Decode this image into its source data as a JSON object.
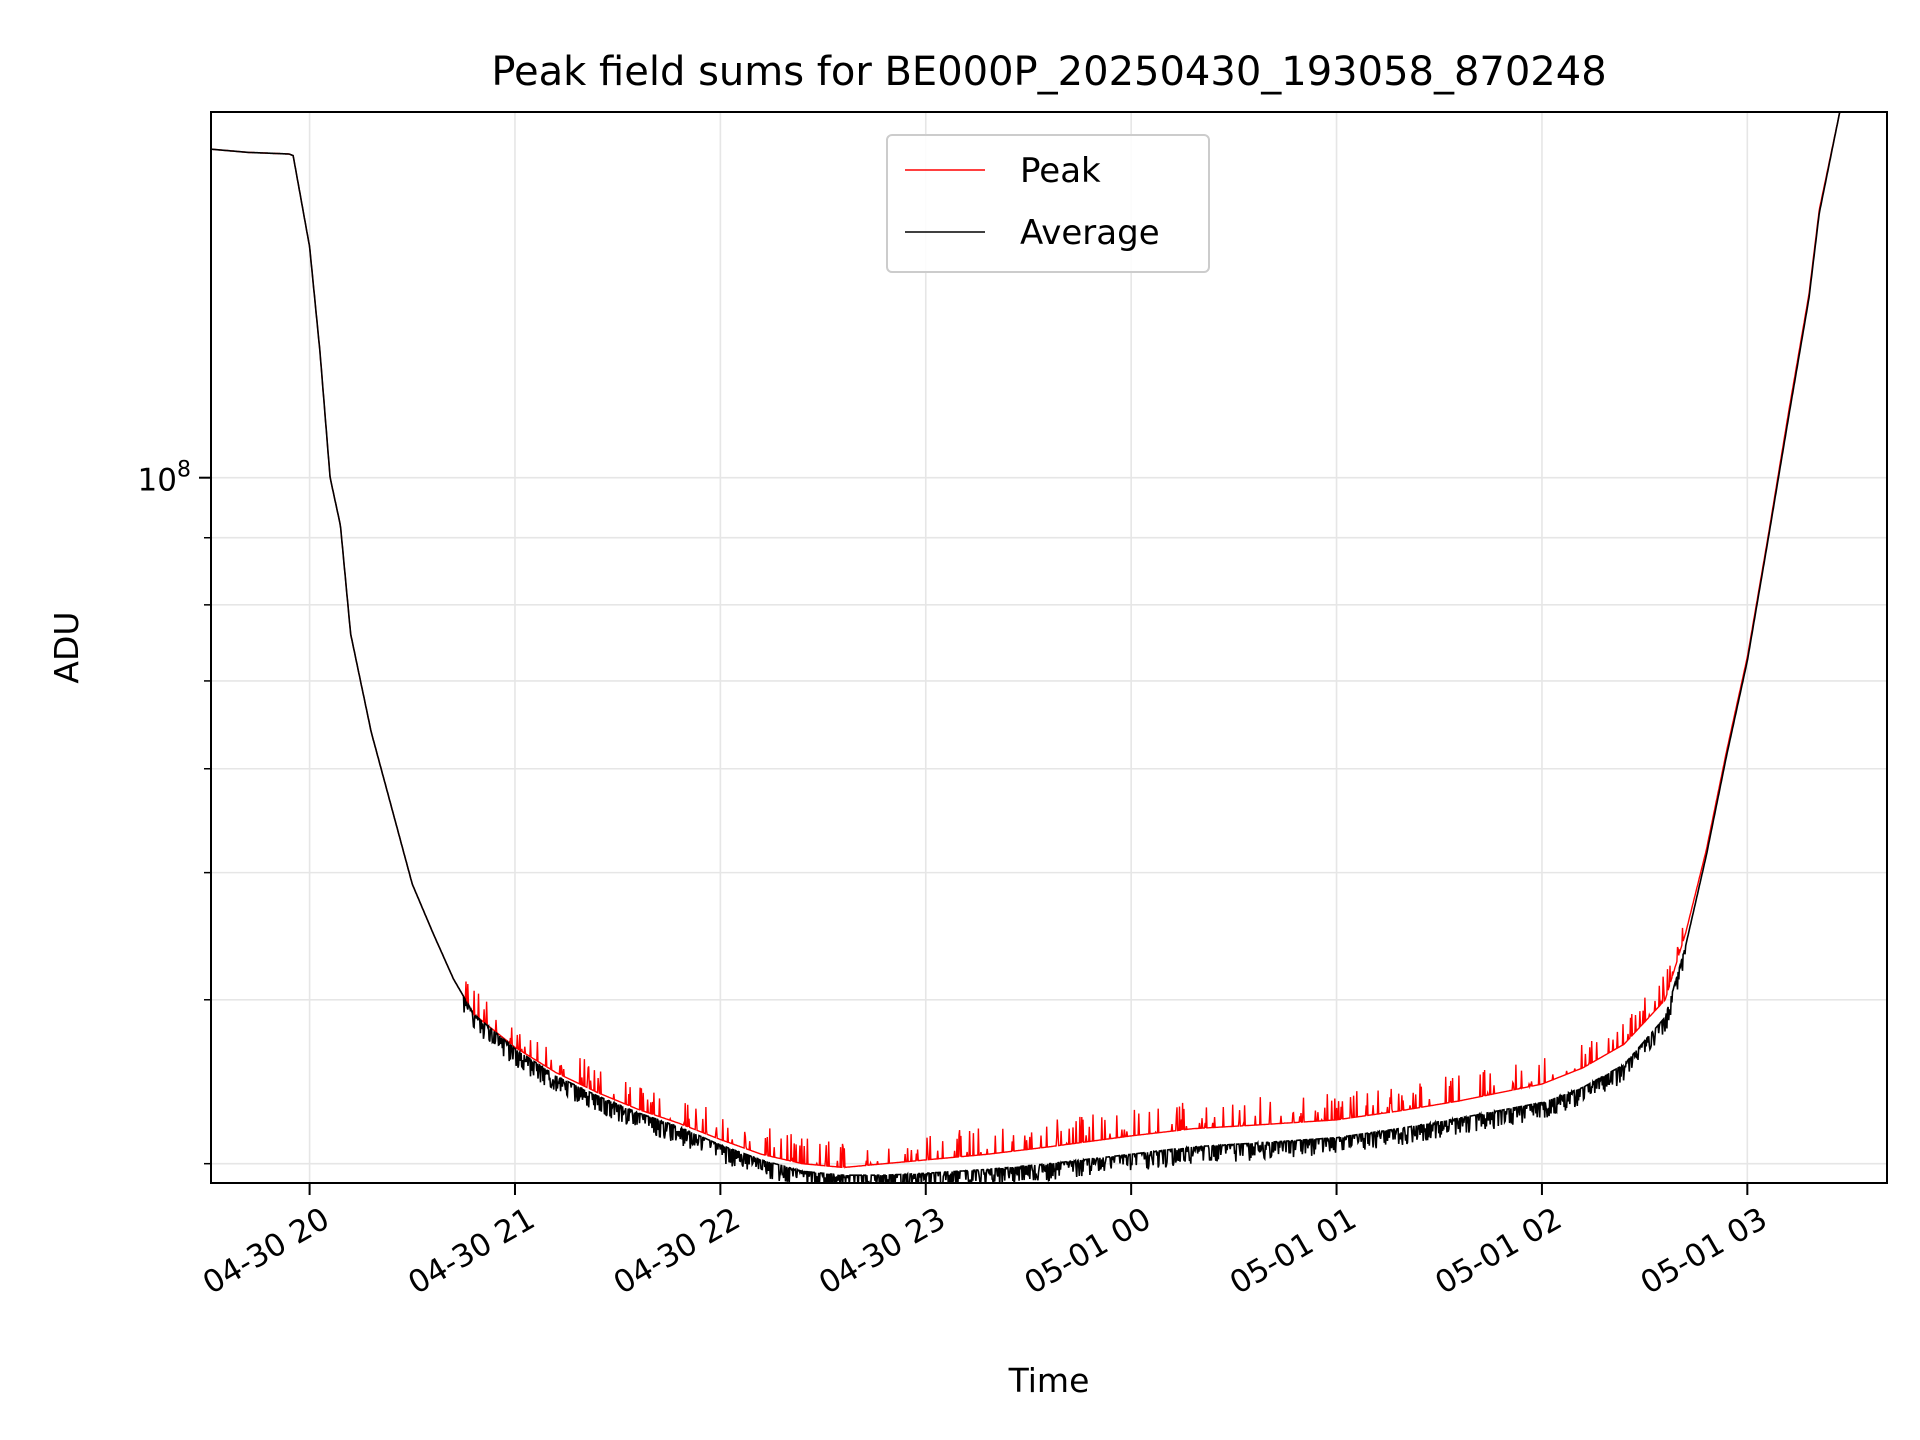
{
  "chart_data": {
    "type": "line",
    "title": "Peak field sums for BE000P_20250430_193058_870248",
    "xlabel": "Time",
    "ylabel": "ADU",
    "yscale": "log",
    "grid": true,
    "legend_position": "top-center",
    "x_unit": "hours since 2025-04-30 19:00",
    "xlim": [
      0.52,
      8.68
    ],
    "ylim": [
      29000000,
      190000000
    ],
    "x_ticks": [
      {
        "x": 1,
        "label": "04-30 20"
      },
      {
        "x": 2,
        "label": "04-30 21"
      },
      {
        "x": 3,
        "label": "04-30 22"
      },
      {
        "x": 4,
        "label": "04-30 23"
      },
      {
        "x": 5,
        "label": "05-01 00"
      },
      {
        "x": 6,
        "label": "05-01 01"
      },
      {
        "x": 7,
        "label": "05-01 02"
      },
      {
        "x": 8,
        "label": "05-01 03"
      }
    ],
    "y_ticks": [
      {
        "y": 100000000,
        "base": "10",
        "exp": "8"
      }
    ],
    "series": [
      {
        "name": "Peak",
        "color": "#ff0000",
        "x": [
          0.52,
          0.7,
          0.9,
          0.92,
          1.0,
          1.05,
          1.1,
          1.15,
          1.2,
          1.3,
          1.4,
          1.5,
          1.6,
          1.7,
          1.8,
          2.0,
          2.2,
          2.4,
          2.6,
          2.8,
          3.0,
          3.2,
          3.4,
          3.6,
          3.8,
          4.0,
          4.3,
          4.6,
          5.0,
          5.3,
          5.6,
          6.0,
          6.3,
          6.6,
          7.0,
          7.2,
          7.4,
          7.6,
          7.7,
          7.8,
          7.9,
          8.0,
          8.1,
          8.2,
          8.3,
          8.35,
          8.45
        ],
        "y": [
          178000000,
          177000000,
          176500000,
          176000000,
          150000000,
          125000000,
          100000000,
          92000000,
          76000000,
          64000000,
          56000000,
          49000000,
          45000000,
          41500000,
          39000000,
          36800000,
          35200000,
          34000000,
          33000000,
          32200000,
          31300000,
          30500000,
          30000000,
          29800000,
          30000000,
          30200000,
          30500000,
          30900000,
          31500000,
          31900000,
          32100000,
          32400000,
          32900000,
          33500000,
          34500000,
          35500000,
          37000000,
          40000000,
          45000000,
          52000000,
          62000000,
          73000000,
          90000000,
          112000000,
          138000000,
          160000000,
          190000000
        ]
      },
      {
        "name": "Average",
        "color": "#000000",
        "x": [
          0.52,
          0.7,
          0.9,
          0.92,
          1.0,
          1.05,
          1.1,
          1.15,
          1.2,
          1.3,
          1.4,
          1.5,
          1.6,
          1.7,
          1.8,
          2.0,
          2.2,
          2.4,
          2.6,
          2.8,
          3.0,
          3.2,
          3.4,
          3.6,
          3.8,
          4.0,
          4.3,
          4.6,
          5.0,
          5.3,
          5.6,
          6.0,
          6.3,
          6.6,
          7.0,
          7.2,
          7.4,
          7.6,
          7.7,
          7.8,
          7.9,
          8.0,
          8.1,
          8.2,
          8.3,
          8.35,
          8.45
        ],
        "y": [
          178000000,
          177000000,
          176500000,
          176000000,
          150000000,
          125000000,
          100000000,
          92000000,
          76000000,
          64000000,
          56000000,
          49000000,
          45000000,
          41500000,
          39000000,
          36700000,
          35000000,
          33800000,
          32800000,
          32000000,
          31000000,
          30200000,
          29600000,
          29400000,
          29400000,
          29500000,
          29700000,
          30000000,
          30500000,
          30900000,
          31100000,
          31400000,
          31900000,
          32500000,
          33400000,
          34300000,
          35700000,
          38800000,
          44000000,
          51500000,
          61500000,
          72500000,
          89500000,
          111000000,
          137000000,
          159000000,
          190000000
        ]
      }
    ]
  }
}
